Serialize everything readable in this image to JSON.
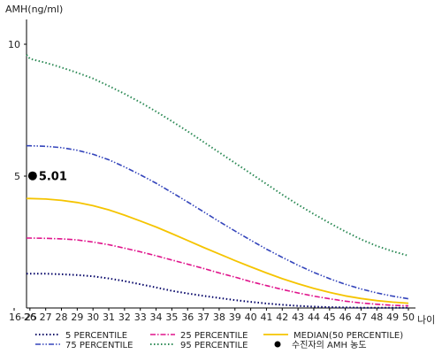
{
  "chart_data": {
    "type": "line",
    "ylabel": "AMH(ng/ml)",
    "xlabel": "나이",
    "ylim": [
      0,
      11
    ],
    "yticks": [
      5,
      10
    ],
    "categories": [
      "16-25",
      "26",
      "27",
      "28",
      "29",
      "30",
      "31",
      "32",
      "33",
      "34",
      "35",
      "36",
      "37",
      "38",
      "39",
      "40",
      "41",
      "42",
      "43",
      "44",
      "45",
      "46",
      "47",
      "48",
      "49",
      "50"
    ],
    "series": [
      {
        "name": "5 PERCENTILE",
        "color": "#000066",
        "dash": "dotted",
        "values": [
          1.3,
          1.3,
          1.3,
          1.28,
          1.25,
          1.2,
          1.12,
          1.02,
          0.9,
          0.78,
          0.65,
          0.55,
          0.46,
          0.38,
          0.3,
          0.23,
          0.17,
          0.12,
          0.08,
          0.05,
          0.03,
          0.02,
          0.01,
          0.01,
          0.01,
          0.01
        ]
      },
      {
        "name": "25 PERCENTILE",
        "color": "#e0148c",
        "dash": "dashdot",
        "values": [
          2.65,
          2.65,
          2.64,
          2.62,
          2.58,
          2.5,
          2.4,
          2.27,
          2.13,
          1.98,
          1.82,
          1.66,
          1.5,
          1.33,
          1.17,
          1.0,
          0.85,
          0.7,
          0.57,
          0.45,
          0.35,
          0.26,
          0.19,
          0.14,
          0.1,
          0.08
        ]
      },
      {
        "name": "MEDIAN(50 PERCENTILE)",
        "color": "#f5c400",
        "dash": "solid",
        "values": [
          4.15,
          4.15,
          4.13,
          4.08,
          4.0,
          3.88,
          3.72,
          3.52,
          3.3,
          3.07,
          2.82,
          2.56,
          2.3,
          2.05,
          1.8,
          1.56,
          1.33,
          1.11,
          0.92,
          0.74,
          0.59,
          0.46,
          0.36,
          0.28,
          0.22,
          0.18
        ]
      },
      {
        "name": "75 PERCENTILE",
        "color": "#3344bb",
        "dash": "dashdotdot",
        "values": [
          6.15,
          6.15,
          6.13,
          6.08,
          5.98,
          5.83,
          5.62,
          5.35,
          5.05,
          4.73,
          4.38,
          4.02,
          3.65,
          3.28,
          2.92,
          2.57,
          2.23,
          1.92,
          1.62,
          1.35,
          1.11,
          0.9,
          0.72,
          0.57,
          0.45,
          0.35
        ]
      },
      {
        "name": "95 PERCENTILE",
        "color": "#2e8b57",
        "dash": "dotted",
        "values": [
          9.6,
          9.45,
          9.3,
          9.12,
          8.92,
          8.7,
          8.42,
          8.12,
          7.8,
          7.45,
          7.08,
          6.7,
          6.3,
          5.9,
          5.5,
          5.1,
          4.7,
          4.3,
          3.92,
          3.56,
          3.22,
          2.9,
          2.6,
          2.35,
          2.15,
          1.98
        ]
      }
    ],
    "point": {
      "name": "수진자의 AMH 농도",
      "category": "26",
      "value": 5.01,
      "label": "5.01"
    }
  }
}
